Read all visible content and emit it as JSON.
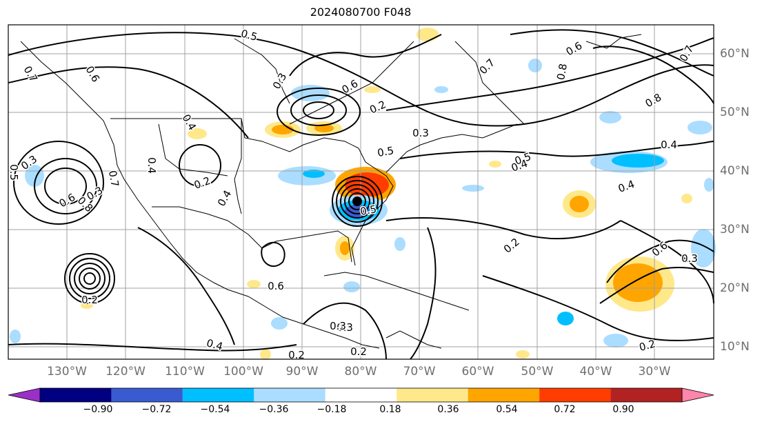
{
  "title": "2024080700 F048",
  "map": {
    "lon_labels": [
      "130°W",
      "120°W",
      "110°W",
      "100°W",
      "90°W",
      "80°W",
      "70°W",
      "60°W",
      "50°W",
      "40°W",
      "30°W"
    ],
    "lat_labels": [
      "60°N",
      "50°N",
      "40°N",
      "30°N",
      "20°N",
      "10°N"
    ],
    "contour_labels": [
      "0.5",
      "0.7",
      "0.6",
      "0.8",
      "0.6",
      "0.8",
      "0.7",
      "0.3",
      "0.7",
      "0.6",
      "0.2",
      "0.4",
      "0.5",
      "0.2",
      "0.4",
      "0.3",
      "0.5",
      "0.4",
      "0.5",
      "0.4",
      "0.3",
      "0.7",
      "0.6",
      "0.8",
      "0.4",
      "0.4",
      "0.5",
      "0.2",
      "0.6",
      "0.3",
      "0.6",
      "0.4",
      "0.2",
      "0.3",
      "0.3",
      "0.2",
      "0.2",
      "0.3",
      "0.2"
    ],
    "colors": {
      "coast": "#000000",
      "contour": "#000000",
      "grid": "#a0a0a0",
      "ocean": "#ffffff"
    }
  },
  "colorbar": {
    "ticks": [
      "−0.90",
      "−0.72",
      "−0.54",
      "−0.36",
      "−0.18",
      "0.18",
      "0.36",
      "0.54",
      "0.72",
      "0.90"
    ],
    "colors": [
      "#9b30c8",
      "#000080",
      "#3a5bd0",
      "#00bfff",
      "#aaddff",
      "#ffffff",
      "#ffe88a",
      "#ffa500",
      "#ff3d00",
      "#b22222",
      "#ff85aa"
    ]
  }
}
